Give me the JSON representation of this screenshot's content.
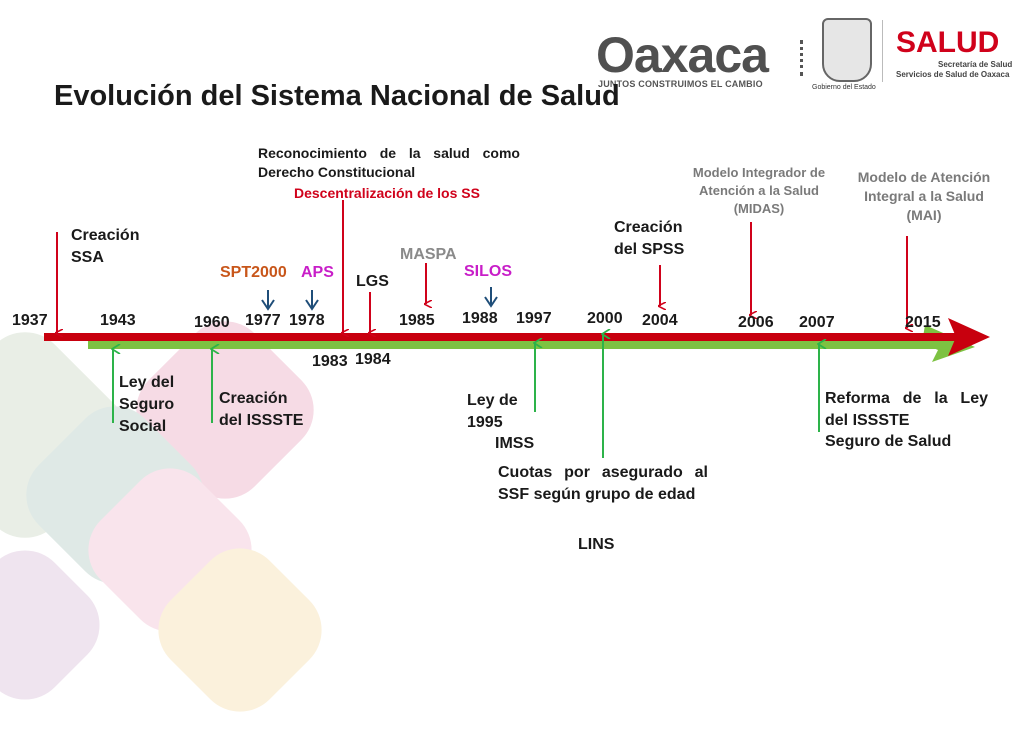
{
  "title": "Evolución del Sistema Nacional de Salud",
  "logos": {
    "oaxaca": "Oaxaca",
    "oaxaca_tagline": "JUNTOS CONSTRUIMOS EL CAMBIO",
    "gobierno": "Gobierno del Estado",
    "salud": "SALUD",
    "salud_line1": "Secretaría de Salud",
    "salud_line2": "Servicios de Salud de Oaxaca"
  },
  "years": {
    "y1937": "1937",
    "y1943": "1943",
    "y1960": "1960",
    "y1977": "1977",
    "y1978": "1978",
    "y1983": "1983",
    "y1984": "1984",
    "y1985": "1985",
    "y1988": "1988",
    "y1997": "1997",
    "y2000": "2000",
    "y2004": "2004",
    "y2006": "2006",
    "y2007": "2007",
    "y2015": "2015"
  },
  "events_top": {
    "creacion_ssa": "Creación SSA",
    "spt2000": "SPT2000",
    "aps": "APS",
    "reconocimiento": "Reconocimiento de la salud como Derecho Constitucional",
    "descentralizacion": "Descentralización de los SS",
    "lgs": "LGS",
    "maspa": "MASPA",
    "silos": "SILOS",
    "creacion_spss": "Creación del SPSS",
    "midas": "Modelo Integrador de Atención a la Salud (MIDAS)",
    "mai": "Modelo de Atención Integral a la Salud (MAI)"
  },
  "events_bottom": {
    "ley_seguro_social": "Ley del Seguro Social",
    "creacion_issste": "Creación del ISSSTE",
    "ley_1995": "Ley de 1995",
    "imss": "IMSS",
    "cuotas": "Cuotas por asegurado al SSF según grupo de edad",
    "lins": "LINS",
    "reforma_issste": "Reforma de la Ley del ISSSTE",
    "seguro_salud": "Seguro de Salud"
  },
  "colors": {
    "timeline_red": "#c8000e",
    "timeline_green": "#7dc242",
    "arrow_red": "#d0021b",
    "arrow_green": "#2db34a",
    "arrow_blue": "#1f4e79"
  }
}
